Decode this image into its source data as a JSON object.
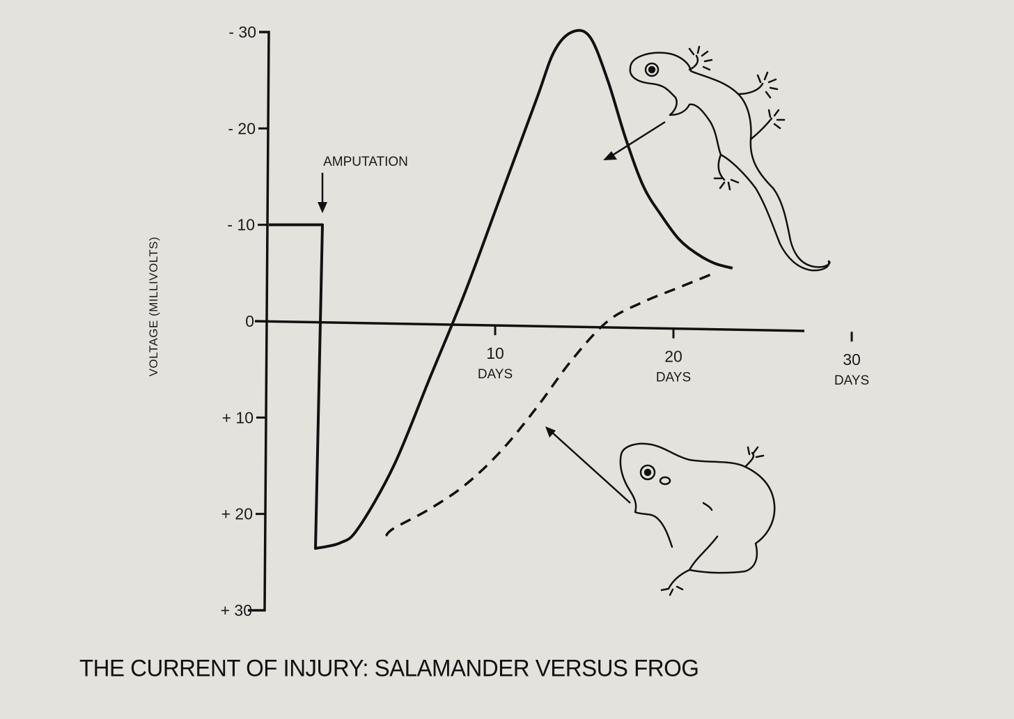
{
  "caption": "THE CURRENT OF INJURY: SALAMANDER VERSUS FROG",
  "chart_data": {
    "type": "line",
    "ylabel": "VOLTAGE (MILLIVOLTS)",
    "xlabel": "",
    "y_ticks": [
      "- 30",
      "- 20",
      "- 10",
      "0",
      "+ 10",
      "+ 20",
      "+ 30"
    ],
    "y_tick_values": [
      -30,
      -20,
      -10,
      0,
      10,
      20,
      30
    ],
    "x_ticks": [
      {
        "value": 10,
        "label": "10",
        "unit": "DAYS"
      },
      {
        "value": 20,
        "label": "20",
        "unit": "DAYS"
      },
      {
        "value": 30,
        "label": "30",
        "unit": "DAYS"
      }
    ],
    "ylim": [
      -30,
      30
    ],
    "y_inverted": true,
    "xlim": [
      -3,
      30
    ],
    "annotation": {
      "text": "AMPUTATION",
      "x": 0
    },
    "series": [
      {
        "name": "",
        "style": "solid",
        "depicts": "salamander",
        "points": [
          [
            -3,
            -10
          ],
          [
            0,
            -10
          ],
          [
            0,
            23
          ],
          [
            1,
            23
          ],
          [
            2,
            21.5
          ],
          [
            4,
            15
          ],
          [
            6,
            6
          ],
          [
            8,
            -3
          ],
          [
            10,
            -13
          ],
          [
            12,
            -23
          ],
          [
            13,
            -28
          ],
          [
            14,
            -30
          ],
          [
            15,
            -29.5
          ],
          [
            16,
            -25
          ],
          [
            17,
            -19
          ],
          [
            18,
            -14
          ],
          [
            19,
            -11
          ],
          [
            20,
            -8.5
          ],
          [
            21,
            -7
          ],
          [
            22,
            -6
          ],
          [
            23,
            -5.5
          ]
        ]
      },
      {
        "name": "",
        "style": "dashed",
        "depicts": "frog",
        "points": [
          [
            2,
            23
          ],
          [
            4,
            21.5
          ],
          [
            6,
            19.5
          ],
          [
            8,
            17
          ],
          [
            10,
            13.5
          ],
          [
            12,
            9
          ],
          [
            14,
            4
          ],
          [
            16,
            0
          ],
          [
            18,
            -2
          ],
          [
            20,
            -3.5
          ],
          [
            22,
            -5
          ]
        ]
      }
    ],
    "grid": false,
    "legend": "none"
  },
  "illustrations": [
    {
      "name": "salamander-illustration",
      "points_to": "solid"
    },
    {
      "name": "frog-illustration",
      "points_to": "dashed"
    }
  ]
}
